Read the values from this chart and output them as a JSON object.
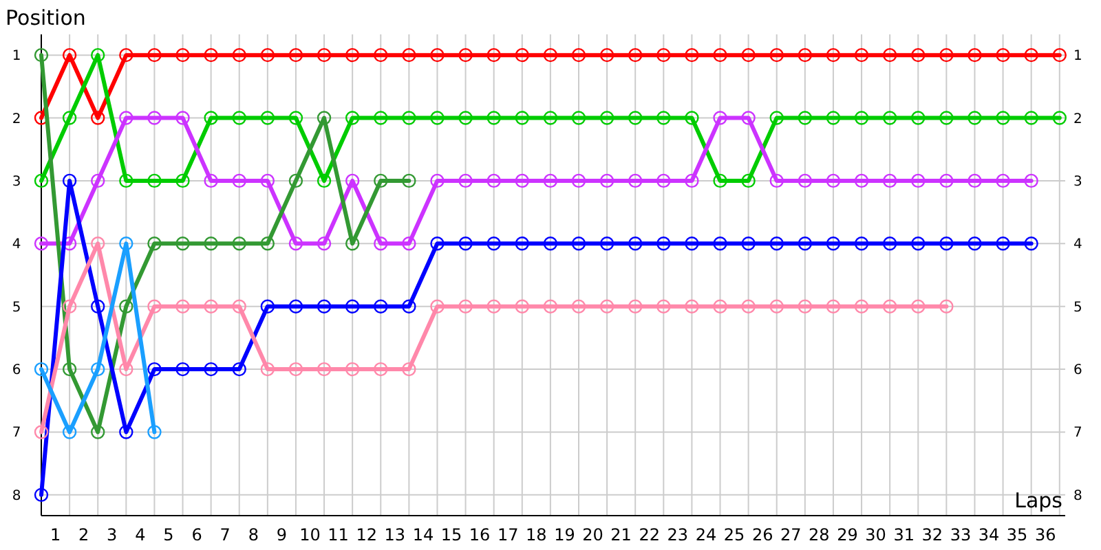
{
  "chart_data": {
    "type": "line",
    "ylabel": "Position",
    "xlabel": "Laps",
    "x": [
      0,
      1,
      2,
      3,
      4,
      5,
      6,
      7,
      8,
      9,
      10,
      11,
      12,
      13,
      14,
      15,
      16,
      17,
      18,
      19,
      20,
      21,
      22,
      23,
      24,
      25,
      26,
      27,
      28,
      29,
      30,
      31,
      32,
      33,
      34,
      35,
      36
    ],
    "series": [
      {
        "color": "#ff0000",
        "values": [
          2,
          1,
          2,
          1,
          1,
          1,
          1,
          1,
          1,
          1,
          1,
          1,
          1,
          1,
          1,
          1,
          1,
          1,
          1,
          1,
          1,
          1,
          1,
          1,
          1,
          1,
          1,
          1,
          1,
          1,
          1,
          1,
          1,
          1,
          1,
          1,
          1
        ]
      },
      {
        "color": "#00cc00",
        "values": [
          3,
          2,
          1,
          3,
          3,
          3,
          2,
          2,
          2,
          2,
          3,
          2,
          2,
          2,
          2,
          2,
          2,
          2,
          2,
          2,
          2,
          2,
          2,
          2,
          3,
          3,
          2,
          2,
          2,
          2,
          2,
          2,
          2,
          2,
          2,
          2,
          2
        ]
      },
      {
        "color": "#cc33ff",
        "values": [
          4,
          4,
          3,
          2,
          2,
          2,
          3,
          3,
          3,
          4,
          4,
          3,
          4,
          4,
          3,
          3,
          3,
          3,
          3,
          3,
          3,
          3,
          3,
          3,
          2,
          2,
          3,
          3,
          3,
          3,
          3,
          3,
          3,
          3,
          3,
          3,
          null
        ]
      },
      {
        "color": "#339933",
        "values": [
          1,
          6,
          7,
          5,
          4,
          4,
          4,
          4,
          4,
          3,
          2,
          4,
          3,
          3,
          null,
          null,
          null,
          null,
          null,
          null,
          null,
          null,
          null,
          null,
          null,
          null,
          null,
          null,
          null,
          null,
          null,
          null,
          null,
          null,
          null,
          null,
          null
        ]
      },
      {
        "color": "#0000ff",
        "values": [
          8,
          3,
          5,
          7,
          6,
          6,
          6,
          6,
          5,
          5,
          5,
          5,
          5,
          5,
          4,
          4,
          4,
          4,
          4,
          4,
          4,
          4,
          4,
          4,
          4,
          4,
          4,
          4,
          4,
          4,
          4,
          4,
          4,
          4,
          4,
          4,
          null
        ]
      },
      {
        "color": "#ff88aa",
        "values": [
          7,
          5,
          4,
          6,
          5,
          5,
          5,
          5,
          6,
          6,
          6,
          6,
          6,
          6,
          5,
          5,
          5,
          5,
          5,
          5,
          5,
          5,
          5,
          5,
          5,
          5,
          5,
          5,
          5,
          5,
          5,
          5,
          5,
          null,
          null,
          null,
          null
        ]
      },
      {
        "color": "#1a9fff",
        "values": [
          6,
          7,
          6,
          4,
          7,
          null,
          null,
          null,
          null,
          null,
          null,
          null,
          null,
          null,
          null,
          null,
          null,
          null,
          null,
          null,
          null,
          null,
          null,
          null,
          null,
          null,
          null,
          null,
          null,
          null,
          null,
          null,
          null,
          null,
          null,
          null,
          null
        ]
      }
    ],
    "xlim": [
      0,
      36.2
    ],
    "xticks": [
      {
        "value": 0.5,
        "label": "1"
      },
      {
        "value": 1.5,
        "label": "2"
      },
      {
        "value": 2.5,
        "label": "3"
      },
      {
        "value": 3.5,
        "label": "4"
      },
      {
        "value": 4.5,
        "label": "5"
      },
      {
        "value": 5.5,
        "label": "6"
      },
      {
        "value": 6.5,
        "label": "7"
      },
      {
        "value": 7.5,
        "label": "8"
      },
      {
        "value": 8.5,
        "label": "9"
      },
      {
        "value": 9.5,
        "label": "10"
      },
      {
        "value": 10.5,
        "label": "11"
      },
      {
        "value": 11.5,
        "label": "12"
      },
      {
        "value": 12.5,
        "label": "13"
      },
      {
        "value": 13.5,
        "label": "14"
      },
      {
        "value": 14.5,
        "label": "15"
      },
      {
        "value": 15.5,
        "label": "16"
      },
      {
        "value": 16.5,
        "label": "17"
      },
      {
        "value": 17.5,
        "label": "18"
      },
      {
        "value": 18.5,
        "label": "19"
      },
      {
        "value": 19.5,
        "label": "20"
      },
      {
        "value": 20.5,
        "label": "21"
      },
      {
        "value": 21.5,
        "label": "22"
      },
      {
        "value": 22.5,
        "label": "23"
      },
      {
        "value": 23.5,
        "label": "24"
      },
      {
        "value": 24.5,
        "label": "25"
      },
      {
        "value": 25.5,
        "label": "26"
      },
      {
        "value": 26.5,
        "label": "27"
      },
      {
        "value": 27.5,
        "label": "28"
      },
      {
        "value": 28.5,
        "label": "29"
      },
      {
        "value": 29.5,
        "label": "30"
      },
      {
        "value": 30.5,
        "label": "31"
      },
      {
        "value": 31.5,
        "label": "32"
      },
      {
        "value": 32.5,
        "label": "33"
      },
      {
        "value": 33.5,
        "label": "34"
      },
      {
        "value": 34.5,
        "label": "35"
      },
      {
        "value": 35.5,
        "label": "36"
      }
    ],
    "ylim": [
      8.33,
      0.67
    ],
    "yticks": [
      1,
      2,
      3,
      4,
      5,
      6,
      7,
      8
    ],
    "y2lim": [
      8.33,
      0.67
    ],
    "y2ticks": [
      1,
      2,
      3,
      4,
      5,
      6,
      7,
      8
    ],
    "grid": true,
    "marker": "circle",
    "line_style": "solid"
  }
}
